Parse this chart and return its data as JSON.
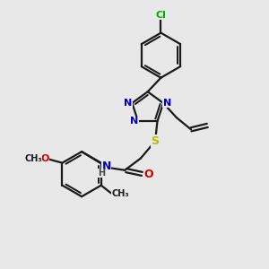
{
  "background_color": "#e8e8e8",
  "bond_color": "#1a1a1a",
  "bond_width": 1.6,
  "atom_colors": {
    "N": "#0000cc",
    "O": "#cc0000",
    "S": "#bbbb00",
    "Cl": "#00aa00",
    "C": "#1a1a1a",
    "H": "#444444"
  },
  "figsize": [
    3.0,
    3.0
  ],
  "dpi": 100
}
